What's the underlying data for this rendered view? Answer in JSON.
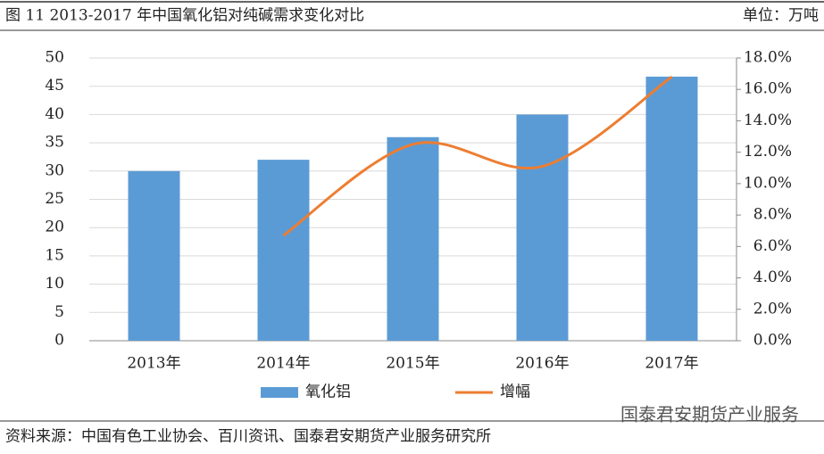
{
  "chart_data": {
    "type": "bar_line",
    "title": "图 11 2013-2017 年中国氧化铝对纯碱需求变化对比",
    "unit": "单位：万吨",
    "source": "资料来源：中国有色工业协会、百川资讯、国泰君安期货产业服务研究所",
    "watermark": "国泰君安期货产业服务",
    "categories": [
      "2013年",
      "2014年",
      "2015年",
      "2016年",
      "2017年"
    ],
    "series": [
      {
        "name": "氧化铝",
        "type": "bar",
        "color": "#5b9bd5",
        "values": [
          30,
          32,
          36,
          40,
          46.7
        ]
      },
      {
        "name": "增幅",
        "type": "line",
        "axis": "y2",
        "color": "#ed7d31",
        "values": [
          null,
          6.7,
          12.5,
          11.1,
          16.8
        ]
      }
    ],
    "ylim": [
      0,
      50
    ],
    "yticks": [
      0,
      5,
      10,
      15,
      20,
      25,
      30,
      35,
      40,
      45,
      50
    ],
    "y2lim": [
      0,
      18
    ],
    "y2ticks": [
      {
        "value": 0,
        "label": "0.0%"
      },
      {
        "value": 2,
        "label": "2.0%"
      },
      {
        "value": 4,
        "label": "4.0%"
      },
      {
        "value": 6,
        "label": "6.0%"
      },
      {
        "value": 8,
        "label": "8.0%"
      },
      {
        "value": 10,
        "label": "10.0%"
      },
      {
        "value": 12,
        "label": "12.0%"
      },
      {
        "value": 14,
        "label": "14.0%"
      },
      {
        "value": 16,
        "label": "16.0%"
      },
      {
        "value": 18,
        "label": "18.0%"
      }
    ],
    "grid": true,
    "legend": "bottom"
  }
}
